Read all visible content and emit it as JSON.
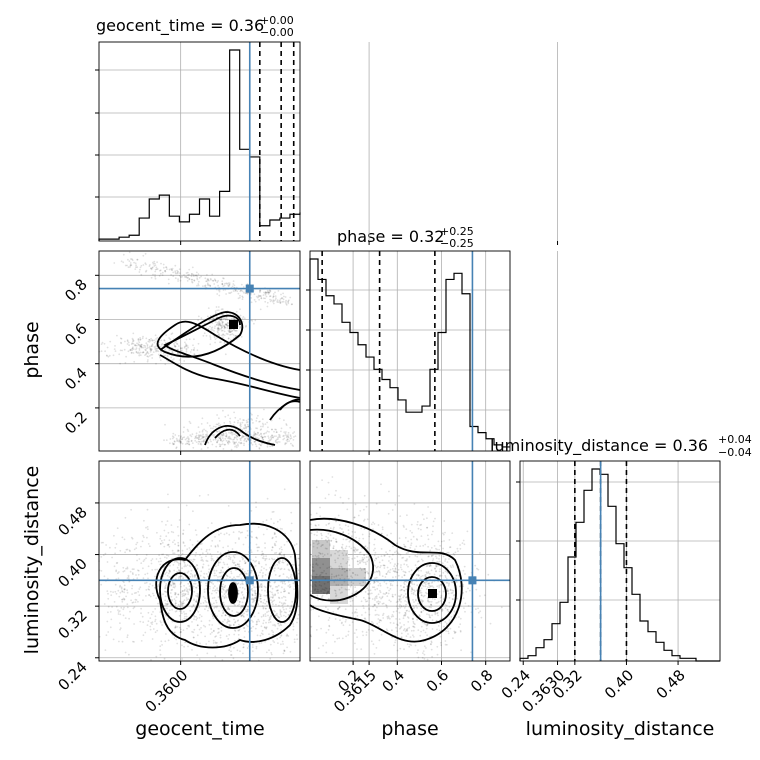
{
  "chart_data": {
    "type": "corner",
    "parameters": [
      "geocent_time",
      "phase",
      "luminosity_distance"
    ],
    "truth_color": "#4682b4",
    "truths": {
      "geocent_time": 0.36055,
      "phase": 0.74,
      "luminosity_distance": 0.36
    },
    "titles": {
      "geocent_time": {
        "name": "geocent_time",
        "value": "0.36",
        "plus": "+0.00",
        "minus": "−0.00"
      },
      "phase": {
        "name": "phase",
        "value": "0.32",
        "plus": "+0.25",
        "minus": "−0.25"
      },
      "luminosity_distance": {
        "name": "luminosity_distance",
        "value": "0.36",
        "plus": "+0.04",
        "minus": "−0.04"
      }
    },
    "axis_labels": {
      "x": [
        "geocent_time",
        "phase",
        "luminosity_distance"
      ],
      "y": [
        "phase",
        "luminosity_distance"
      ]
    },
    "ranges": {
      "geocent_time": [
        0.35935,
        0.36095
      ],
      "phase": [
        0.005,
        0.91
      ],
      "luminosity_distance": [
        0.235,
        0.545
      ]
    },
    "ticks": {
      "geocent_time": [
        0.36,
        0.3615,
        0.363
      ],
      "phase_x": [
        0.2,
        0.4,
        0.6,
        0.8
      ],
      "phase_y": [
        0.2,
        0.4,
        0.6,
        0.8
      ],
      "luminosity_distance_x": [
        0.24,
        0.32,
        0.4,
        0.48
      ],
      "luminosity_distance_y": [
        0.24,
        0.32,
        0.4,
        0.48
      ]
    },
    "tick_labels": {
      "geocent_time": [
        "0.3600",
        "0.3615",
        "0.3630"
      ],
      "phase": [
        "0.2",
        "0.4",
        "0.6",
        "0.8"
      ],
      "luminosity_distance": [
        "0.24",
        "0.32",
        "0.40",
        "0.48"
      ]
    },
    "histograms": {
      "geocent_time": {
        "bin_start": 0.35935,
        "bin_width": 8e-05,
        "counts": [
          1,
          1,
          2,
          3,
          12,
          22,
          24,
          13,
          10,
          14,
          22,
          13,
          26,
          100,
          48,
          44,
          8,
          11,
          12,
          14,
          15,
          10,
          9,
          7,
          6
        ],
        "quantiles": [
          0.36093,
          0.36086,
          0.36115
        ],
        "q_values": [
          0.36063,
          0.3608,
          0.3609
        ]
      },
      "phase": {
        "bin_start": 0.005,
        "bin_width": 0.0362,
        "counts": [
          94,
          84,
          76,
          72,
          63,
          58,
          52,
          46,
          40,
          35,
          31,
          25,
          19,
          19,
          22,
          40,
          58,
          84,
          87,
          77,
          12,
          9,
          6,
          3,
          2
        ],
        "q_values": [
          0.06,
          0.32,
          0.57
        ]
      },
      "luminosity_distance": {
        "bin_start": 0.235,
        "bin_width": 0.0124,
        "counts": [
          1,
          2,
          5,
          8,
          14,
          22,
          39,
          52,
          64,
          72,
          70,
          58,
          44,
          35,
          25,
          15,
          11,
          7,
          4,
          2,
          1,
          1,
          0,
          0,
          0
        ],
        "q_values": [
          0.32,
          0.36,
          0.4
        ]
      }
    },
    "contours_2d": {
      "phase_vs_geocent_time": {
        "x_param": "geocent_time",
        "y_param": "phase",
        "levels": 3
      },
      "luminosity_distance_vs_geocent_time": {
        "x_param": "geocent_time",
        "y_param": "luminosity_distance",
        "levels": 3
      },
      "luminosity_distance_vs_phase": {
        "x_param": "phase",
        "y_param": "luminosity_distance",
        "levels": 3
      }
    }
  }
}
